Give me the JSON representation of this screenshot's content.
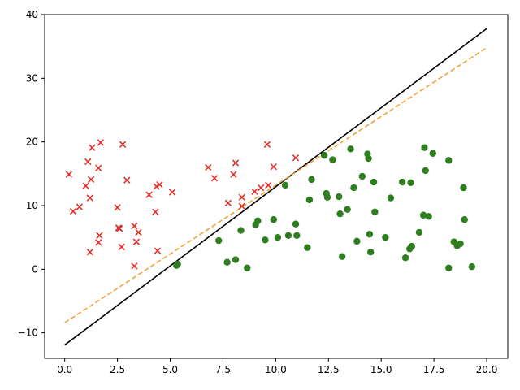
{
  "chart_data": {
    "type": "scatter",
    "title": "",
    "xlabel": "",
    "ylabel": "",
    "xlim": [
      -0.95,
      21.0
    ],
    "ylim": [
      -14.0,
      40.0
    ],
    "xticks": [
      0.0,
      2.5,
      5.0,
      7.5,
      10.0,
      12.5,
      15.0,
      17.5,
      20.0
    ],
    "xtick_labels": [
      "0.0",
      "2.5",
      "5.0",
      "7.5",
      "10.0",
      "12.5",
      "15.0",
      "17.5",
      "20.0"
    ],
    "yticks": [
      -10,
      0,
      10,
      20,
      30,
      40
    ],
    "ytick_labels": [
      "−10",
      "0",
      "10",
      "20",
      "30",
      "40"
    ],
    "grid": false,
    "series": [
      {
        "marker": "x",
        "color": "#e0302a",
        "points": [
          [
            0.2,
            14.9
          ],
          [
            0.4,
            9.1
          ],
          [
            0.7,
            9.8
          ],
          [
            1.0,
            13.1
          ],
          [
            1.1,
            16.9
          ],
          [
            1.2,
            11.2
          ],
          [
            1.3,
            19.1
          ],
          [
            1.25,
            14.1
          ],
          [
            1.2,
            2.7
          ],
          [
            1.6,
            15.9
          ],
          [
            1.7,
            19.9
          ],
          [
            1.65,
            5.3
          ],
          [
            1.6,
            4.2
          ],
          [
            2.5,
            9.7
          ],
          [
            2.6,
            6.4
          ],
          [
            2.55,
            6.5
          ],
          [
            2.7,
            3.5
          ],
          [
            2.75,
            19.6
          ],
          [
            2.95,
            14.0
          ],
          [
            3.3,
            6.8
          ],
          [
            3.4,
            4.3
          ],
          [
            3.5,
            5.8
          ],
          [
            3.3,
            0.5
          ],
          [
            4.0,
            11.7
          ],
          [
            4.3,
            9.0
          ],
          [
            4.35,
            13.0
          ],
          [
            4.5,
            13.3
          ],
          [
            4.4,
            2.9
          ],
          [
            5.1,
            12.1
          ],
          [
            6.8,
            16.0
          ],
          [
            7.1,
            14.3
          ],
          [
            7.75,
            10.4
          ],
          [
            8.0,
            14.9
          ],
          [
            8.1,
            16.7
          ],
          [
            8.4,
            11.3
          ],
          [
            8.4,
            9.9
          ],
          [
            9.0,
            12.2
          ],
          [
            9.3,
            12.8
          ],
          [
            9.65,
            13.2
          ],
          [
            9.6,
            19.6
          ],
          [
            9.9,
            16.1
          ],
          [
            10.95,
            17.5
          ]
        ]
      },
      {
        "marker": "circle",
        "color": "#2e7d1e",
        "points": [
          [
            5.3,
            0.6
          ],
          [
            5.35,
            0.8
          ],
          [
            7.3,
            4.5
          ],
          [
            7.7,
            1.1
          ],
          [
            8.1,
            1.5
          ],
          [
            8.35,
            6.1
          ],
          [
            8.65,
            0.2
          ],
          [
            9.05,
            7.0
          ],
          [
            9.15,
            7.6
          ],
          [
            9.5,
            4.6
          ],
          [
            9.9,
            7.8
          ],
          [
            10.1,
            5.0
          ],
          [
            10.45,
            13.2
          ],
          [
            10.6,
            5.3
          ],
          [
            10.95,
            7.1
          ],
          [
            11.0,
            5.3
          ],
          [
            11.5,
            3.4
          ],
          [
            11.6,
            10.9
          ],
          [
            11.7,
            14.1
          ],
          [
            12.3,
            17.9
          ],
          [
            12.4,
            11.9
          ],
          [
            12.45,
            11.3
          ],
          [
            12.7,
            17.2
          ],
          [
            13.0,
            11.4
          ],
          [
            13.05,
            8.7
          ],
          [
            13.15,
            2.0
          ],
          [
            13.4,
            9.4
          ],
          [
            13.55,
            18.9
          ],
          [
            13.7,
            12.8
          ],
          [
            13.85,
            4.4
          ],
          [
            14.1,
            14.6
          ],
          [
            14.35,
            18.1
          ],
          [
            14.4,
            17.4
          ],
          [
            14.45,
            5.5
          ],
          [
            14.5,
            2.7
          ],
          [
            14.65,
            13.7
          ],
          [
            14.7,
            9.0
          ],
          [
            15.2,
            5.0
          ],
          [
            15.45,
            11.2
          ],
          [
            16.0,
            13.7
          ],
          [
            16.15,
            1.8
          ],
          [
            16.35,
            3.2
          ],
          [
            16.45,
            3.6
          ],
          [
            16.4,
            13.6
          ],
          [
            16.8,
            5.8
          ],
          [
            17.0,
            8.5
          ],
          [
            17.05,
            19.1
          ],
          [
            17.1,
            15.5
          ],
          [
            17.25,
            8.3
          ],
          [
            17.45,
            18.2
          ],
          [
            18.2,
            17.1
          ],
          [
            18.2,
            0.2
          ],
          [
            18.45,
            4.3
          ],
          [
            18.6,
            3.7
          ],
          [
            18.75,
            4.0
          ],
          [
            18.9,
            12.8
          ],
          [
            18.95,
            7.8
          ],
          [
            19.3,
            0.4
          ]
        ]
      }
    ],
    "lines": [
      {
        "style": "solid",
        "color": "#000000",
        "x": [
          0.0,
          20.0
        ],
        "y": [
          -11.9,
          37.8
        ]
      },
      {
        "style": "dashed",
        "color": "#f0a030",
        "x": [
          0.0,
          20.0
        ],
        "y": [
          -8.4,
          34.8
        ]
      }
    ]
  }
}
